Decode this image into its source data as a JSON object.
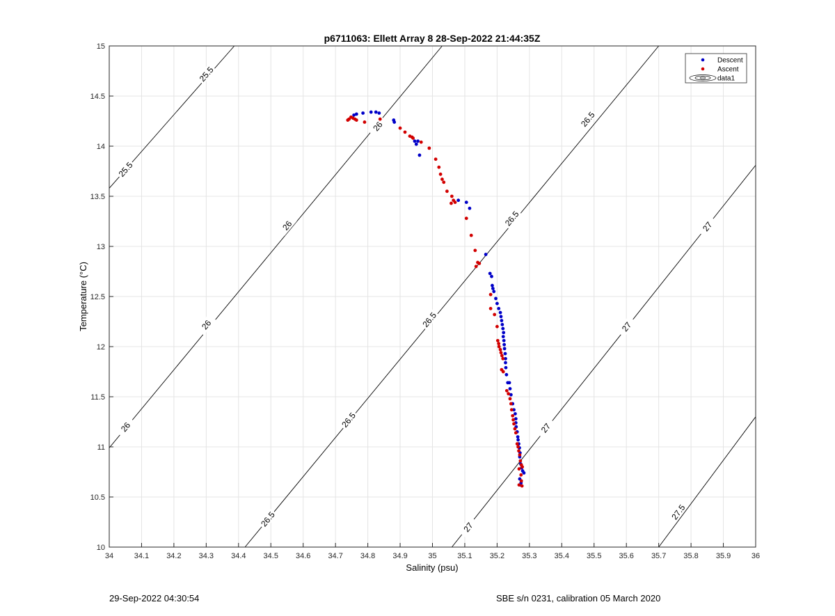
{
  "chart_data": {
    "type": "scatter",
    "title": "p6711063: Ellett Array 8 28-Sep-2022 21:44:35Z",
    "xlabel": "Salinity (psu)",
    "ylabel": "Temperature (°C)",
    "xlim": [
      34,
      36
    ],
    "ylim": [
      10,
      15
    ],
    "xticks": [
      34,
      34.1,
      34.2,
      34.3,
      34.4,
      34.5,
      34.6,
      34.7,
      34.8,
      34.9,
      35,
      35.1,
      35.2,
      35.3,
      35.4,
      35.5,
      35.6,
      35.7,
      35.8,
      35.9,
      36
    ],
    "xtick_labels": [
      "34",
      "34.1",
      "34.2",
      "34.3",
      "34.4",
      "34.5",
      "34.6",
      "34.7",
      "34.8",
      "34.9",
      "35",
      "35.1",
      "35.2",
      "35.3",
      "35.4",
      "35.5",
      "35.6",
      "35.7",
      "35.8",
      "35.9",
      "36"
    ],
    "yticks": [
      10,
      10.5,
      11,
      11.5,
      12,
      12.5,
      13,
      13.5,
      14,
      14.5,
      15
    ],
    "ytick_labels": [
      "10",
      "10.5",
      "11",
      "11.5",
      "12",
      "12.5",
      "13",
      "13.5",
      "14",
      "14.5",
      "15"
    ],
    "grid": true,
    "legend_position": "top-right",
    "series": [
      {
        "name": "Descent",
        "color": "#0000c8",
        "points": [
          [
            34.757,
            14.31
          ],
          [
            34.765,
            14.32
          ],
          [
            34.785,
            14.33
          ],
          [
            34.81,
            14.34
          ],
          [
            34.825,
            14.34
          ],
          [
            34.835,
            14.33
          ],
          [
            34.88,
            14.26
          ],
          [
            34.882,
            14.24
          ],
          [
            34.945,
            14.05
          ],
          [
            34.95,
            14.02
          ],
          [
            34.955,
            14.05
          ],
          [
            34.96,
            13.91
          ],
          [
            35.08,
            13.46
          ],
          [
            35.105,
            13.44
          ],
          [
            35.115,
            13.38
          ],
          [
            35.165,
            12.92
          ],
          [
            35.178,
            12.73
          ],
          [
            35.183,
            12.7
          ],
          [
            35.185,
            12.61
          ],
          [
            35.187,
            12.58
          ],
          [
            35.19,
            12.55
          ],
          [
            35.196,
            12.48
          ],
          [
            35.2,
            12.43
          ],
          [
            35.205,
            12.38
          ],
          [
            35.21,
            12.34
          ],
          [
            35.212,
            12.3
          ],
          [
            35.214,
            12.26
          ],
          [
            35.216,
            12.22
          ],
          [
            35.218,
            12.18
          ],
          [
            35.22,
            12.14
          ],
          [
            35.219,
            12.1
          ],
          [
            35.221,
            12.06
          ],
          [
            35.222,
            12.02
          ],
          [
            35.223,
            11.98
          ],
          [
            35.225,
            11.93
          ],
          [
            35.226,
            11.88
          ],
          [
            35.226,
            11.84
          ],
          [
            35.227,
            11.79
          ],
          [
            35.229,
            11.72
          ],
          [
            35.233,
            11.64
          ],
          [
            35.238,
            11.64
          ],
          [
            35.24,
            11.58
          ],
          [
            35.243,
            11.52
          ],
          [
            35.248,
            11.43
          ],
          [
            35.252,
            11.37
          ],
          [
            35.256,
            11.33
          ],
          [
            35.258,
            11.28
          ],
          [
            35.258,
            11.24
          ],
          [
            35.259,
            11.2
          ],
          [
            35.262,
            11.15
          ],
          [
            35.264,
            11.1
          ],
          [
            35.265,
            11.07
          ],
          [
            35.267,
            11.03
          ],
          [
            35.269,
            10.99
          ],
          [
            35.271,
            10.94
          ],
          [
            35.27,
            10.9
          ],
          [
            35.273,
            10.83
          ],
          [
            35.276,
            10.79
          ],
          [
            35.279,
            10.76
          ],
          [
            35.283,
            10.74
          ],
          [
            35.27,
            10.68
          ],
          [
            35.274,
            10.64
          ],
          [
            35.271,
            10.62
          ]
        ]
      },
      {
        "name": "Ascent",
        "color": "#d20000",
        "points": [
          [
            34.738,
            14.26
          ],
          [
            34.742,
            14.27
          ],
          [
            34.748,
            14.29
          ],
          [
            34.754,
            14.28
          ],
          [
            34.76,
            14.27
          ],
          [
            34.765,
            14.26
          ],
          [
            34.79,
            14.24
          ],
          [
            34.838,
            14.27
          ],
          [
            34.9,
            14.18
          ],
          [
            34.915,
            14.14
          ],
          [
            34.93,
            14.1
          ],
          [
            34.937,
            14.09
          ],
          [
            34.94,
            14.08
          ],
          [
            34.965,
            14.04
          ],
          [
            34.99,
            13.98
          ],
          [
            35.01,
            13.87
          ],
          [
            35.02,
            13.79
          ],
          [
            35.025,
            13.72
          ],
          [
            35.03,
            13.67
          ],
          [
            35.035,
            13.64
          ],
          [
            35.045,
            13.55
          ],
          [
            35.06,
            13.5
          ],
          [
            35.065,
            13.46
          ],
          [
            35.058,
            13.43
          ],
          [
            35.07,
            13.44
          ],
          [
            35.105,
            13.28
          ],
          [
            35.12,
            13.11
          ],
          [
            35.132,
            12.96
          ],
          [
            35.14,
            12.84
          ],
          [
            35.135,
            12.8
          ],
          [
            35.145,
            12.83
          ],
          [
            35.18,
            12.52
          ],
          [
            35.18,
            12.38
          ],
          [
            35.192,
            12.32
          ],
          [
            35.2,
            12.2
          ],
          [
            35.202,
            12.06
          ],
          [
            35.205,
            12.03
          ],
          [
            35.206,
            12
          ],
          [
            35.21,
            11.97
          ],
          [
            35.212,
            11.94
          ],
          [
            35.215,
            11.91
          ],
          [
            35.218,
            11.88
          ],
          [
            35.214,
            11.77
          ],
          [
            35.219,
            11.75
          ],
          [
            35.23,
            11.56
          ],
          [
            35.235,
            11.53
          ],
          [
            35.24,
            11.48
          ],
          [
            35.243,
            11.43
          ],
          [
            35.245,
            11.37
          ],
          [
            35.248,
            11.31
          ],
          [
            35.25,
            11.27
          ],
          [
            35.252,
            11.23
          ],
          [
            35.255,
            11.18
          ],
          [
            35.258,
            11.14
          ],
          [
            35.262,
            11.03
          ],
          [
            35.265,
            11
          ],
          [
            35.267,
            10.96
          ],
          [
            35.27,
            10.92
          ],
          [
            35.272,
            10.86
          ],
          [
            35.275,
            10.82
          ],
          [
            35.278,
            10.8
          ],
          [
            35.268,
            10.78
          ],
          [
            35.274,
            10.72
          ],
          [
            35.275,
            10.66
          ],
          [
            35.268,
            10.62
          ],
          [
            35.277,
            10.61
          ]
        ]
      }
    ],
    "legend_entries": [
      "Descent",
      "Ascent",
      "data1"
    ],
    "contours": [
      {
        "level": "25.5",
        "line": [
          [
            34,
            13.58
          ],
          [
            34.387,
            15
          ]
        ],
        "labels": [
          {
            "x": 34.3,
            "y": 14.72
          },
          {
            "x": 34.05,
            "y": 13.77
          }
        ]
      },
      {
        "level": "26",
        "line": [
          [
            34,
            10.99
          ],
          [
            35.03,
            15
          ]
        ],
        "labels": [
          {
            "x": 34.05,
            "y": 11.2
          },
          {
            "x": 34.3,
            "y": 12.22
          },
          {
            "x": 34.55,
            "y": 13.21
          },
          {
            "x": 34.83,
            "y": 14.2
          }
        ]
      },
      {
        "level": "26.5",
        "line": [
          [
            34.42,
            10
          ],
          [
            35.7,
            15
          ]
        ],
        "labels": [
          {
            "x": 34.49,
            "y": 10.28
          },
          {
            "x": 34.74,
            "y": 11.27
          },
          {
            "x": 34.99,
            "y": 12.27
          },
          {
            "x": 35.245,
            "y": 13.28
          },
          {
            "x": 35.48,
            "y": 14.27
          }
        ]
      },
      {
        "level": "27",
        "line": [
          [
            35.06,
            10
          ],
          [
            36,
            13.81
          ]
        ],
        "labels": [
          {
            "x": 35.11,
            "y": 10.2
          },
          {
            "x": 35.35,
            "y": 11.19
          },
          {
            "x": 35.6,
            "y": 12.2
          },
          {
            "x": 35.85,
            "y": 13.2
          }
        ]
      },
      {
        "level": "27.5",
        "line": [
          [
            35.7,
            10
          ],
          [
            36,
            11.3
          ]
        ],
        "labels": [
          {
            "x": 35.76,
            "y": 10.35
          }
        ]
      }
    ]
  },
  "footer": {
    "left": "29-Sep-2022 04:30:54",
    "right": "SBE s/n 0231, calibration 05 March 2020"
  }
}
